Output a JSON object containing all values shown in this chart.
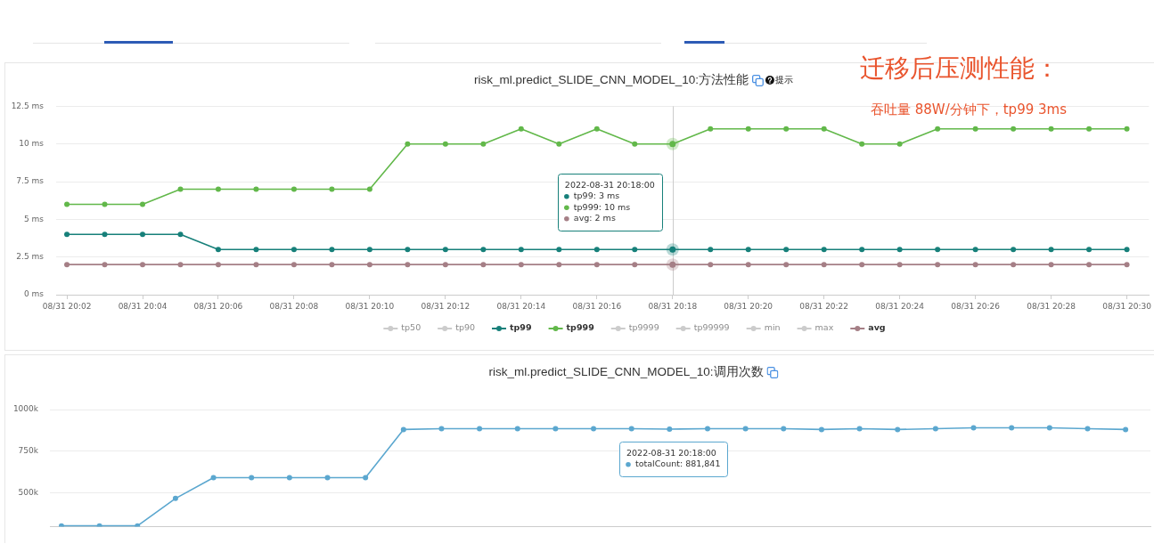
{
  "chart_data": [
    {
      "type": "line",
      "title": "risk_ml.predict_SLIDE_CNN_MODEL_10:方法性能",
      "x": [
        "2022-08-31T20:02",
        "2022-08-31T20:03",
        "2022-08-31T20:04",
        "2022-08-31T20:05",
        "2022-08-31T20:06",
        "2022-08-31T20:07",
        "2022-08-31T20:08",
        "2022-08-31T20:09",
        "2022-08-31T20:10",
        "2022-08-31T20:11",
        "2022-08-31T20:12",
        "2022-08-31T20:13",
        "2022-08-31T20:14",
        "2022-08-31T20:15",
        "2022-08-31T20:16",
        "2022-08-31T20:17",
        "2022-08-31T20:18",
        "2022-08-31T20:19",
        "2022-08-31T20:20",
        "2022-08-31T20:21",
        "2022-08-31T20:22",
        "2022-08-31T20:23",
        "2022-08-31T20:24",
        "2022-08-31T20:25",
        "2022-08-31T20:26",
        "2022-08-31T20:27",
        "2022-08-31T20:28",
        "2022-08-31T20:29",
        "2022-08-31T20:30"
      ],
      "xlim": [
        "2022-08-31T20:01:43",
        "2022-08-31T20:30:35"
      ],
      "xticks": [
        {
          "value": "2022-08-31T20:02",
          "label": "08/31 20:02"
        },
        {
          "value": "2022-08-31T20:04",
          "label": "08/31 20:04"
        },
        {
          "value": "2022-08-31T20:06",
          "label": "08/31 20:06"
        },
        {
          "value": "2022-08-31T20:08",
          "label": "08/31 20:08"
        },
        {
          "value": "2022-08-31T20:10",
          "label": "08/31 20:10"
        },
        {
          "value": "2022-08-31T20:12",
          "label": "08/31 20:12"
        },
        {
          "value": "2022-08-31T20:14",
          "label": "08/31 20:14"
        },
        {
          "value": "2022-08-31T20:16",
          "label": "08/31 20:16"
        },
        {
          "value": "2022-08-31T20:18",
          "label": "08/31 20:18"
        },
        {
          "value": "2022-08-31T20:20",
          "label": "08/31 20:20"
        },
        {
          "value": "2022-08-31T20:22",
          "label": "08/31 20:22"
        },
        {
          "value": "2022-08-31T20:24",
          "label": "08/31 20:24"
        },
        {
          "value": "2022-08-31T20:26",
          "label": "08/31 20:26"
        },
        {
          "value": "2022-08-31T20:28",
          "label": "08/31 20:28"
        },
        {
          "value": "2022-08-31T20:30",
          "label": "08/31 20:30"
        }
      ],
      "ylim": [
        0,
        12.5
      ],
      "yticks": [
        {
          "value": 0,
          "label": "0 ms"
        },
        {
          "value": 2.5,
          "label": "2.5 ms"
        },
        {
          "value": 5,
          "label": "5 ms"
        },
        {
          "value": 7.5,
          "label": "7.5 ms"
        },
        {
          "value": 10,
          "label": "10 ms"
        },
        {
          "value": 12.5,
          "label": "12.5 ms"
        }
      ],
      "series": [
        {
          "name": "tp50",
          "color": "#cccccc",
          "values": [
            null,
            null,
            null,
            null,
            null,
            null,
            null,
            null,
            null,
            null,
            null,
            null,
            null,
            null,
            null,
            null,
            null,
            null,
            null,
            null,
            null,
            null,
            null,
            null,
            null,
            null,
            null,
            null,
            null
          ]
        },
        {
          "name": "tp90",
          "color": "#cccccc",
          "values": [
            null,
            null,
            null,
            null,
            null,
            null,
            null,
            null,
            null,
            null,
            null,
            null,
            null,
            null,
            null,
            null,
            null,
            null,
            null,
            null,
            null,
            null,
            null,
            null,
            null,
            null,
            null,
            null,
            null
          ]
        },
        {
          "name": "tp99",
          "color": "#17807a",
          "values": [
            4,
            4,
            4,
            4,
            3,
            3,
            3,
            3,
            3,
            3,
            3,
            3,
            3,
            3,
            3,
            3,
            3,
            3,
            3,
            3,
            3,
            3,
            3,
            3,
            3,
            3,
            3,
            3,
            3
          ]
        },
        {
          "name": "tp999",
          "color": "#62b84a",
          "values": [
            6,
            6,
            6,
            7,
            7,
            7,
            7,
            7,
            7,
            10,
            10,
            10,
            11,
            10,
            11,
            10,
            10,
            11,
            11,
            11,
            11,
            10,
            10,
            11,
            11,
            11,
            11,
            11,
            11
          ]
        },
        {
          "name": "tp9999",
          "color": "#cccccc",
          "values": [
            null,
            null,
            null,
            null,
            null,
            null,
            null,
            null,
            null,
            null,
            null,
            null,
            null,
            null,
            null,
            null,
            null,
            null,
            null,
            null,
            null,
            null,
            null,
            null,
            null,
            null,
            null,
            null,
            null
          ]
        },
        {
          "name": "tp99999",
          "color": "#cccccc",
          "values": [
            null,
            null,
            null,
            null,
            null,
            null,
            null,
            null,
            null,
            null,
            null,
            null,
            null,
            null,
            null,
            null,
            null,
            null,
            null,
            null,
            null,
            null,
            null,
            null,
            null,
            null,
            null,
            null,
            null
          ]
        },
        {
          "name": "min",
          "color": "#cccccc",
          "values": [
            null,
            null,
            null,
            null,
            null,
            null,
            null,
            null,
            null,
            null,
            null,
            null,
            null,
            null,
            null,
            null,
            null,
            null,
            null,
            null,
            null,
            null,
            null,
            null,
            null,
            null,
            null,
            null,
            null
          ]
        },
        {
          "name": "max",
          "color": "#cccccc",
          "values": [
            null,
            null,
            null,
            null,
            null,
            null,
            null,
            null,
            null,
            null,
            null,
            null,
            null,
            null,
            null,
            null,
            null,
            null,
            null,
            null,
            null,
            null,
            null,
            null,
            null,
            null,
            null,
            null,
            null
          ]
        },
        {
          "name": "avg",
          "color": "#a57f86",
          "values": [
            2,
            2,
            2,
            2,
            2,
            2,
            2,
            2,
            2,
            2,
            2,
            2,
            2,
            2,
            2,
            2,
            2,
            2,
            2,
            2,
            2,
            2,
            2,
            2,
            2,
            2,
            2,
            2,
            2
          ]
        }
      ],
      "grid": "y",
      "legend": "bottom",
      "marker": "circle",
      "line_style": "solid",
      "ref_lines": [
        {
          "axis": "x",
          "value": "2022-08-31T20:18",
          "color": "#cccccc"
        }
      ],
      "annotations": [
        "提示",
        "迁移后压测性能：",
        "吞吐量 88W/分钟下，tp99 3ms",
        "2022-08-31 20:18:00",
        "tp99: 3 ms",
        "tp999: 10 ms",
        "avg: 2 ms"
      ]
    },
    {
      "type": "line",
      "title": "risk_ml.predict_SLIDE_CNN_MODEL_10:调用次数",
      "categories": [
        null,
        null,
        null,
        null,
        null,
        null,
        null,
        null,
        null,
        null,
        null,
        null,
        null,
        null,
        null,
        null,
        null,
        null,
        null,
        null,
        null,
        null,
        null,
        null,
        null,
        null,
        null,
        null,
        null
      ],
      "ylim": [
        295000,
        1000000
      ],
      "yticks": [
        {
          "value": 500000,
          "label": "500k"
        },
        {
          "value": 750000,
          "label": "750k"
        },
        {
          "value": 1000000,
          "label": "1000k"
        }
      ],
      "tick_labels": "y",
      "series": [
        {
          "color": "#5ba7cf",
          "values": [
            300000,
            300000,
            300000,
            465000,
            590000,
            590000,
            590000,
            590000,
            590000,
            880000,
            885000,
            885000,
            885000,
            885000,
            885000,
            885000,
            881841,
            885000,
            885000,
            885000,
            880000,
            885000,
            880000,
            885000,
            890000,
            890000,
            890000,
            885000,
            880000
          ]
        }
      ],
      "grid": "y",
      "marker": "circle",
      "line_style": "solid",
      "annotations": [
        "2022-08-31 20:18:00",
        "totalCount: 881,841"
      ]
    }
  ]
}
